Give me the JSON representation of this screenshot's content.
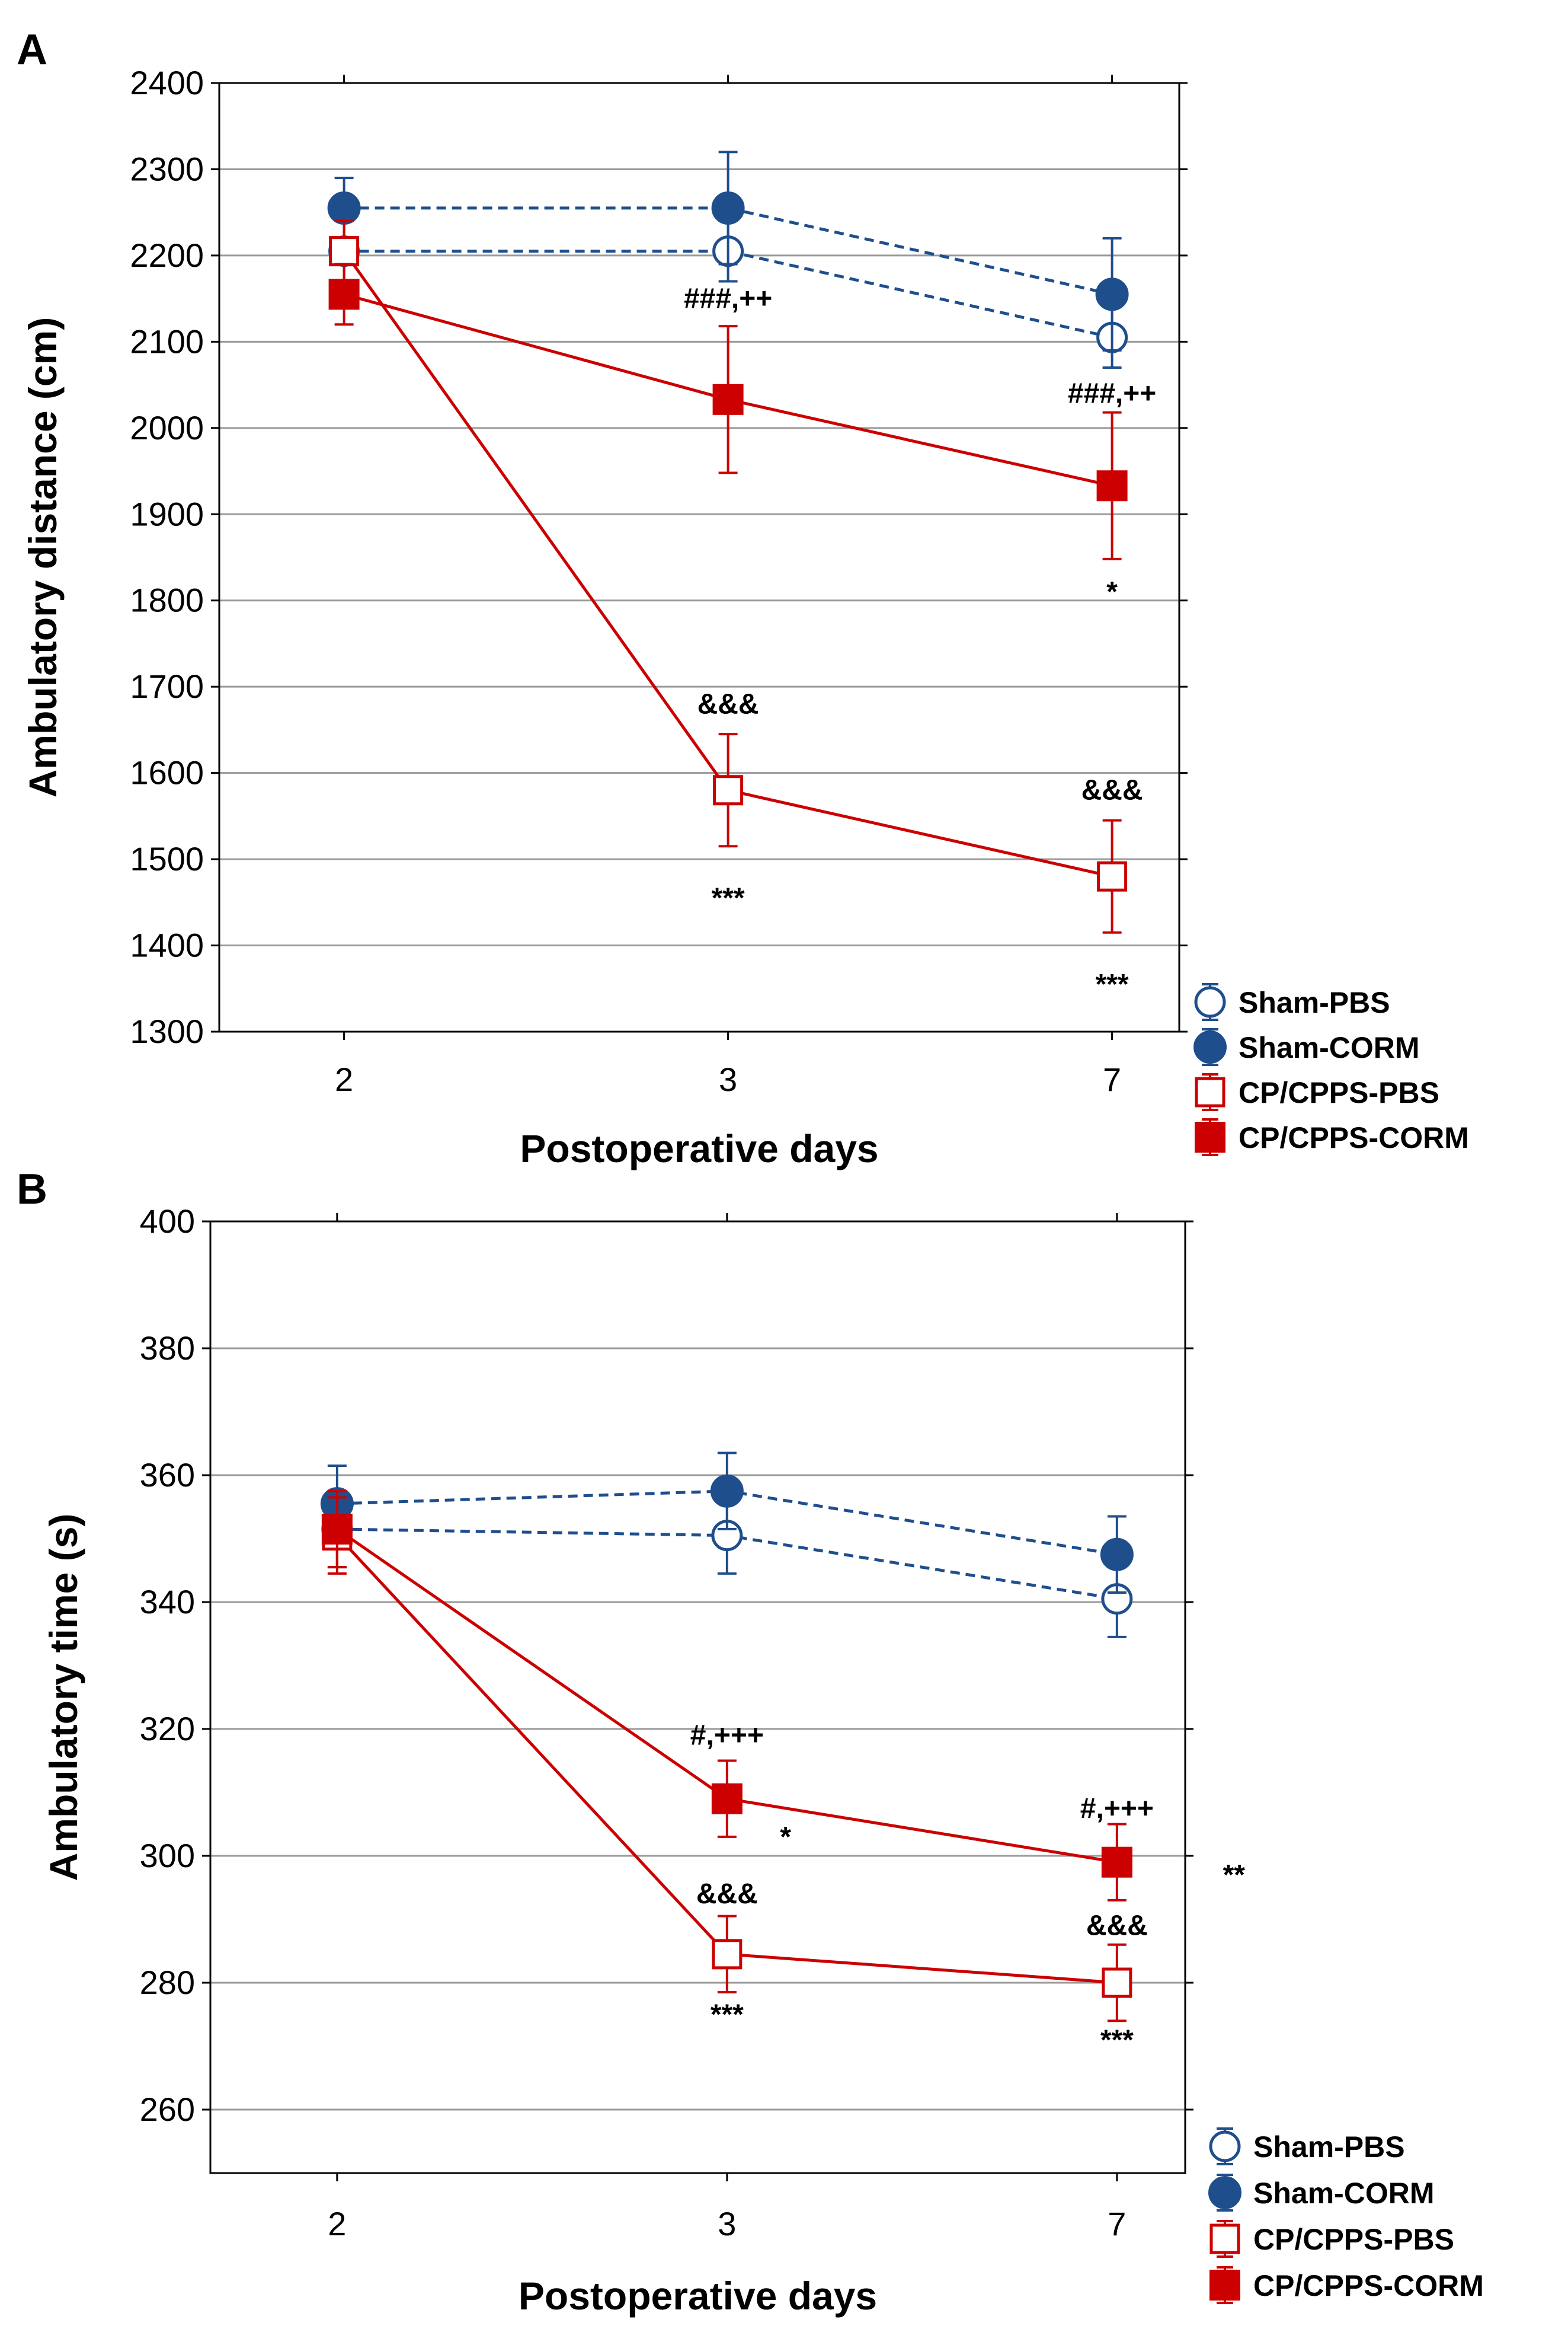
{
  "chart_data": [
    {
      "panel": "A",
      "type": "line",
      "categories": [
        "2",
        "3",
        "7"
      ],
      "xlabel": "Postoperative days",
      "ylabel": "Ambulatory distance (cm)",
      "ylim": [
        1300,
        2400
      ],
      "yticks": [
        1300,
        1400,
        1500,
        1600,
        1700,
        1800,
        1900,
        2000,
        2100,
        2200,
        2300,
        2400
      ],
      "grid": true,
      "legend_position": "outside-bottom-right",
      "series": [
        {
          "name": "Sham-PBS",
          "color": "#1f4e8c",
          "marker": "circle-open",
          "line": "dashed",
          "values": [
            2205,
            2205,
            2105
          ],
          "errors": [
            35,
            35,
            35
          ]
        },
        {
          "name": "Sham-CORM",
          "color": "#1f4e8c",
          "marker": "circle-filled",
          "line": "dashed",
          "values": [
            2255,
            2255,
            2155
          ],
          "errors": [
            35,
            65,
            65
          ]
        },
        {
          "name": "CP/CPPS-PBS",
          "color": "#cc0000",
          "marker": "square-open",
          "line": "solid",
          "values": [
            2205,
            1580,
            1480
          ],
          "errors": [
            35,
            65,
            65
          ]
        },
        {
          "name": "CP/CPPS-CORM",
          "color": "#cc0000",
          "marker": "square-filled",
          "line": "solid",
          "values": [
            2155,
            2033,
            1933
          ],
          "errors": [
            35,
            85,
            85
          ]
        }
      ],
      "annotations": [
        {
          "text": "###,++",
          "category_index": 1,
          "y": 2150
        },
        {
          "text": "###,++",
          "category_index": 2,
          "y": 2040
        },
        {
          "text": "*",
          "category_index": 2,
          "y": 1810
        },
        {
          "text": "&&&",
          "category_index": 1,
          "y": 1680
        },
        {
          "text": "***",
          "category_index": 1,
          "y": 1455
        },
        {
          "text": "&&&",
          "category_index": 2,
          "y": 1580
        },
        {
          "text": "***",
          "category_index": 2,
          "y": 1355
        }
      ]
    },
    {
      "panel": "B",
      "type": "line",
      "categories": [
        "2",
        "3",
        "7"
      ],
      "xlabel": "Postoperative days",
      "ylabel": "Ambulatory time (s)",
      "ylim": [
        250,
        400
      ],
      "yticks": [
        260,
        280,
        300,
        320,
        340,
        360,
        380,
        400
      ],
      "grid": true,
      "legend_position": "outside-bottom-right",
      "series": [
        {
          "name": "Sham-PBS",
          "color": "#1f4e8c",
          "marker": "circle-open",
          "line": "dashed",
          "values": [
            351.5,
            350.5,
            340.5
          ],
          "errors": [
            6,
            6,
            6
          ]
        },
        {
          "name": "Sham-CORM",
          "color": "#1f4e8c",
          "marker": "circle-filled",
          "line": "dashed",
          "values": [
            355.5,
            357.5,
            347.5
          ],
          "errors": [
            6,
            6,
            6
          ]
        },
        {
          "name": "CP/CPPS-PBS",
          "color": "#cc0000",
          "marker": "square-open",
          "line": "solid",
          "values": [
            350.5,
            284.5,
            280.0
          ],
          "errors": [
            6,
            6,
            6
          ]
        },
        {
          "name": "CP/CPPS-CORM",
          "color": "#cc0000",
          "marker": "square-filled",
          "line": "solid",
          "values": [
            351.5,
            309.0,
            299.0
          ],
          "errors": [
            6,
            6,
            6
          ]
        }
      ],
      "annotations": [
        {
          "text": "#,+++",
          "category_index": 1,
          "y": 319
        },
        {
          "text": "*",
          "category_index": 1,
          "x_offset": 0.06,
          "y": 303
        },
        {
          "text": "&&&",
          "category_index": 1,
          "y": 294
        },
        {
          "text": "***",
          "category_index": 1,
          "y": 275
        },
        {
          "text": "#,+++",
          "category_index": 2,
          "y": 307.5
        },
        {
          "text": "**",
          "category_index": 2,
          "x_offset": 0.12,
          "y": 297
        },
        {
          "text": "&&&",
          "category_index": 2,
          "y": 289
        },
        {
          "text": "***",
          "category_index": 2,
          "y": 271
        }
      ]
    }
  ]
}
